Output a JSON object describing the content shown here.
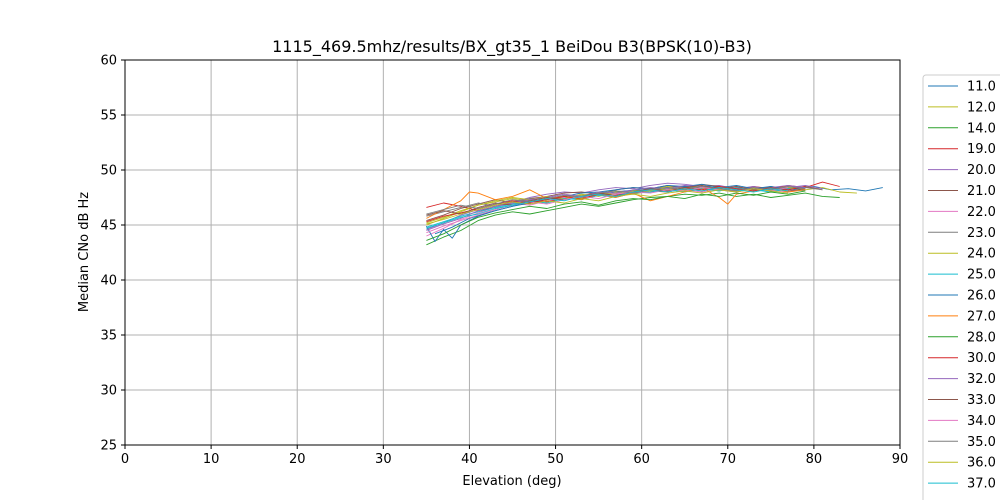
{
  "chart_data": {
    "type": "line",
    "title": "1115_469.5mhz/results/BX_gt35_1 BeiDou B3(BPSK(10)-B3)",
    "xlabel": "Elevation (deg)",
    "ylabel": "Median CNo dB Hz",
    "xlim": [
      0,
      90
    ],
    "ylim": [
      25,
      60
    ],
    "xticks": [
      "0",
      "10",
      "20",
      "30",
      "40",
      "50",
      "60",
      "70",
      "80",
      "90"
    ],
    "yticks": [
      "25",
      "30",
      "35",
      "40",
      "45",
      "50",
      "55",
      "60"
    ],
    "grid": true,
    "legend_position": "right",
    "series": [
      {
        "name": "11.0",
        "color": "#1f77b4",
        "x": [
          36,
          38,
          40,
          42,
          44,
          46,
          48,
          50,
          52,
          54,
          56,
          58,
          60,
          62,
          64,
          66,
          68,
          70,
          72,
          74,
          76,
          78,
          80,
          82,
          84,
          86,
          88
        ],
        "y": [
          44.2,
          44.8,
          45.6,
          46.1,
          46.5,
          46.9,
          47.2,
          47.4,
          47.6,
          47.8,
          47.9,
          48.1,
          48.2,
          48.4,
          48.5,
          48.4,
          48.3,
          48.1,
          48.3,
          48.2,
          48.4,
          48.3,
          48.5,
          48.2,
          48.3,
          48.1,
          48.4
        ]
      },
      {
        "name": "12.0",
        "color": "#bcbd22",
        "x": [
          35,
          37,
          39,
          41,
          43,
          45,
          47,
          49,
          51,
          53,
          55,
          57,
          59,
          61,
          63,
          65,
          67,
          69,
          71,
          73,
          75,
          77,
          79,
          81,
          83,
          85
        ],
        "y": [
          45.0,
          45.6,
          46.2,
          46.8,
          47.1,
          47.4,
          47.2,
          47.0,
          47.5,
          47.7,
          47.9,
          47.8,
          48.1,
          48.2,
          48.5,
          48.3,
          48.6,
          48.2,
          48.4,
          48.1,
          48.3,
          48.5,
          48.2,
          48.4,
          48.0,
          47.9
        ]
      },
      {
        "name": "14.0",
        "color": "#2ca02c",
        "x": [
          35,
          37,
          39,
          41,
          43,
          45,
          47,
          49,
          51,
          53,
          55,
          57,
          59,
          61,
          63,
          65,
          67,
          69,
          71,
          73,
          75,
          77,
          79,
          81,
          83
        ],
        "y": [
          43.2,
          43.9,
          44.5,
          45.4,
          45.9,
          46.2,
          46.0,
          46.3,
          46.6,
          46.9,
          46.7,
          47.0,
          47.3,
          47.5,
          47.6,
          47.8,
          47.7,
          47.9,
          47.6,
          47.8,
          47.5,
          47.7,
          47.9,
          47.6,
          47.5
        ]
      },
      {
        "name": "19.0",
        "color": "#d62728",
        "x": [
          35,
          37,
          39,
          41,
          43,
          45,
          47,
          49,
          51,
          53,
          55,
          57,
          59,
          61,
          63,
          65,
          67,
          69,
          71,
          73,
          75,
          77,
          79,
          81,
          83
        ],
        "y": [
          46.6,
          47.0,
          46.7,
          46.3,
          46.6,
          47.0,
          47.3,
          47.1,
          47.5,
          47.4,
          47.8,
          47.6,
          47.9,
          48.1,
          48.0,
          48.3,
          48.1,
          48.4,
          48.2,
          48.5,
          48.3,
          48.6,
          48.4,
          48.9,
          48.5
        ]
      },
      {
        "name": "20.0",
        "color": "#9467bd",
        "x": [
          35,
          37,
          39,
          41,
          43,
          45,
          47,
          49,
          51,
          53,
          55,
          57,
          59,
          61,
          63,
          65,
          67,
          69,
          71,
          73,
          75,
          77,
          79,
          81
        ],
        "y": [
          44.6,
          45.2,
          45.9,
          46.4,
          46.8,
          47.1,
          47.5,
          47.8,
          48.0,
          47.9,
          48.2,
          48.4,
          48.3,
          48.6,
          48.8,
          48.7,
          48.5,
          48.6,
          48.3,
          48.5,
          48.2,
          48.4,
          48.6,
          48.3
        ]
      },
      {
        "name": "21.0",
        "color": "#8c564b",
        "x": [
          35,
          37,
          39,
          41,
          43,
          45,
          47,
          49,
          51,
          53,
          55,
          57,
          59,
          61,
          63,
          65,
          67,
          69,
          71,
          73,
          75,
          77,
          79,
          81
        ],
        "y": [
          45.4,
          45.9,
          46.5,
          46.9,
          47.3,
          47.0,
          47.4,
          47.6,
          47.9,
          48.0,
          47.8,
          48.2,
          48.4,
          48.3,
          48.6,
          48.4,
          48.7,
          48.5,
          48.2,
          48.4,
          48.1,
          48.3,
          48.5,
          48.2
        ]
      },
      {
        "name": "22.0",
        "color": "#e377c2",
        "x": [
          35,
          37,
          39,
          41,
          43,
          45,
          47,
          49,
          51,
          53,
          55,
          57,
          59,
          61,
          63,
          65,
          67,
          69,
          71,
          73,
          75,
          77,
          79
        ],
        "y": [
          44.0,
          44.7,
          45.5,
          46.1,
          46.6,
          47.0,
          46.8,
          47.2,
          47.5,
          47.3,
          47.7,
          47.9,
          47.8,
          48.1,
          48.3,
          48.2,
          48.0,
          48.3,
          48.1,
          48.4,
          48.2,
          48.0,
          48.3
        ]
      },
      {
        "name": "23.0",
        "color": "#7f7f7f",
        "x": [
          35,
          37,
          39,
          41,
          43,
          45,
          47,
          49,
          51,
          53,
          55,
          57,
          59,
          61,
          63,
          65,
          67,
          69,
          71,
          73,
          75,
          77,
          79,
          81
        ],
        "y": [
          45.8,
          46.2,
          46.6,
          47.0,
          46.7,
          47.1,
          47.4,
          47.3,
          47.7,
          47.6,
          47.9,
          48.1,
          48.0,
          48.3,
          48.2,
          48.5,
          48.3,
          48.1,
          48.4,
          48.2,
          48.5,
          48.3,
          48.4,
          48.2
        ]
      },
      {
        "name": "24.0",
        "color": "#bcbd22",
        "x": [
          35,
          37,
          39,
          41,
          43,
          45,
          47,
          49,
          51,
          53,
          55,
          57,
          59,
          61,
          63,
          65,
          67,
          69,
          71,
          73,
          75,
          77,
          79
        ],
        "y": [
          45.2,
          45.7,
          46.3,
          46.8,
          47.2,
          47.5,
          47.3,
          47.6,
          47.4,
          47.8,
          47.6,
          48.0,
          47.8,
          48.1,
          48.3,
          48.1,
          48.4,
          48.2,
          48.0,
          48.3,
          48.1,
          48.4,
          48.2
        ]
      },
      {
        "name": "25.0",
        "color": "#17becf",
        "x": [
          35,
          37,
          39,
          41,
          43,
          45,
          47,
          49,
          51,
          53,
          55,
          57,
          59,
          61,
          63,
          65,
          67,
          69,
          71,
          73,
          75,
          77,
          79
        ],
        "y": [
          44.8,
          45.3,
          45.8,
          46.2,
          46.6,
          46.9,
          47.2,
          47.0,
          47.4,
          47.3,
          47.7,
          47.5,
          47.9,
          48.0,
          48.2,
          48.0,
          48.3,
          48.1,
          48.4,
          48.2,
          48.0,
          48.3,
          48.1
        ]
      },
      {
        "name": "26.0",
        "color": "#1f77b4",
        "x": [
          35,
          36,
          37,
          38,
          39,
          41,
          43,
          45,
          47,
          49,
          51,
          53,
          55,
          57,
          59,
          61,
          63,
          65,
          67,
          69,
          71,
          73,
          75,
          77,
          79
        ],
        "y": [
          44.9,
          43.5,
          44.6,
          43.8,
          45.0,
          45.8,
          46.3,
          46.7,
          47.0,
          47.4,
          47.6,
          47.9,
          48.0,
          48.2,
          48.4,
          48.3,
          48.6,
          48.5,
          48.7,
          48.4,
          48.6,
          48.3,
          48.5,
          48.2,
          48.4
        ]
      },
      {
        "name": "27.0",
        "color": "#ff7f0e",
        "x": [
          35,
          37,
          39,
          40,
          41,
          43,
          45,
          47,
          49,
          51,
          53,
          55,
          57,
          59,
          61,
          63,
          65,
          67,
          69,
          70,
          71,
          73,
          75,
          77,
          79
        ],
        "y": [
          45.6,
          46.4,
          47.2,
          48.0,
          47.9,
          47.3,
          47.6,
          48.2,
          47.4,
          47.6,
          47.3,
          47.8,
          47.5,
          47.9,
          47.2,
          47.6,
          48.0,
          48.4,
          47.5,
          46.9,
          47.8,
          48.1,
          48.4,
          48.0,
          48.2
        ]
      },
      {
        "name": "28.0",
        "color": "#2ca02c",
        "x": [
          35,
          37,
          39,
          41,
          43,
          45,
          47,
          49,
          51,
          53,
          55,
          57,
          59,
          61,
          63,
          65,
          67,
          69,
          71,
          73,
          75,
          77,
          79
        ],
        "y": [
          43.6,
          44.2,
          45.0,
          45.7,
          46.1,
          46.4,
          46.7,
          46.5,
          46.9,
          47.1,
          46.8,
          47.2,
          47.4,
          47.3,
          47.6,
          47.4,
          47.8,
          47.6,
          47.9,
          47.7,
          48.0,
          47.8,
          48.1
        ]
      },
      {
        "name": "30.0",
        "color": "#d62728",
        "x": [
          35,
          37,
          39,
          41,
          43,
          45,
          47,
          49,
          51,
          53,
          55,
          57,
          59,
          61,
          63,
          65,
          67,
          69,
          71,
          73,
          75,
          77,
          79
        ],
        "y": [
          45.3,
          45.8,
          46.1,
          46.5,
          46.9,
          47.2,
          47.0,
          47.3,
          47.6,
          47.4,
          47.8,
          47.7,
          48.0,
          48.2,
          48.1,
          48.4,
          48.2,
          48.5,
          48.3,
          48.1,
          48.4,
          48.2,
          48.5
        ]
      },
      {
        "name": "32.0",
        "color": "#9467bd",
        "x": [
          35,
          37,
          39,
          41,
          43,
          45,
          47,
          49,
          51,
          53,
          55,
          57,
          59,
          61,
          63,
          65,
          67,
          69,
          71,
          73,
          75,
          77,
          79
        ],
        "y": [
          44.5,
          45.1,
          45.6,
          46.3,
          46.7,
          47.0,
          47.3,
          47.5,
          47.8,
          47.6,
          48.0,
          47.9,
          48.2,
          48.4,
          48.3,
          48.6,
          48.5,
          48.3,
          48.5,
          48.2,
          48.4,
          48.6,
          48.4
        ]
      },
      {
        "name": "33.0",
        "color": "#8c564b",
        "x": [
          35,
          37,
          39,
          41,
          43,
          45,
          47,
          49,
          51,
          53,
          55,
          57,
          59,
          61,
          63,
          65,
          67,
          69,
          71,
          73,
          75,
          77,
          79
        ],
        "y": [
          45.9,
          46.3,
          46.0,
          46.6,
          47.0,
          46.8,
          47.2,
          47.5,
          47.3,
          47.6,
          47.9,
          47.7,
          48.0,
          48.3,
          48.1,
          48.4,
          48.6,
          48.3,
          48.5,
          48.2,
          48.4,
          48.1,
          48.3
        ]
      },
      {
        "name": "34.0",
        "color": "#e377c2",
        "x": [
          35,
          37,
          39,
          41,
          43,
          45,
          47,
          49,
          51,
          53,
          55,
          57,
          59,
          61,
          63,
          65,
          67,
          69,
          71,
          73,
          75,
          77
        ],
        "y": [
          44.3,
          44.9,
          45.4,
          45.9,
          46.4,
          46.8,
          47.1,
          46.9,
          47.3,
          47.6,
          47.4,
          47.8,
          48.0,
          47.9,
          48.2,
          48.1,
          48.4,
          48.2,
          48.0,
          48.3,
          48.1,
          48.4
        ]
      },
      {
        "name": "35.0",
        "color": "#7f7f7f",
        "x": [
          35,
          37,
          39,
          41,
          43,
          45,
          47,
          49,
          51,
          53,
          55,
          57,
          59,
          61,
          63,
          65,
          67,
          69,
          71,
          73,
          75,
          77,
          79
        ],
        "y": [
          46.0,
          46.4,
          46.8,
          46.5,
          46.9,
          47.3,
          47.1,
          47.4,
          47.7,
          47.5,
          47.9,
          48.1,
          47.9,
          48.2,
          48.4,
          48.2,
          48.5,
          48.3,
          48.1,
          48.4,
          48.2,
          48.5,
          48.3
        ]
      },
      {
        "name": "36.0",
        "color": "#bcbd22",
        "x": [
          35,
          37,
          39,
          41,
          43,
          45,
          47,
          49,
          51,
          53,
          55,
          57,
          59,
          61,
          63,
          65,
          67,
          69,
          71,
          73,
          75,
          77
        ],
        "y": [
          45.1,
          45.5,
          46.0,
          46.4,
          46.8,
          47.1,
          46.9,
          47.2,
          47.0,
          47.4,
          47.2,
          47.6,
          47.8,
          47.6,
          47.9,
          48.1,
          47.9,
          48.2,
          48.0,
          48.3,
          48.1,
          47.9
        ]
      },
      {
        "name": "37.0",
        "color": "#17becf",
        "x": [
          35,
          37,
          39,
          41,
          43,
          45,
          47,
          49,
          51,
          53,
          55,
          57,
          59,
          61,
          63,
          65,
          67,
          69,
          71,
          73,
          75,
          77
        ],
        "y": [
          44.7,
          45.2,
          45.7,
          46.0,
          46.5,
          46.8,
          47.1,
          47.4,
          47.2,
          47.6,
          47.8,
          47.6,
          48.0,
          48.2,
          48.0,
          48.3,
          48.1,
          48.4,
          48.2,
          48.0,
          48.3,
          48.1
        ]
      }
    ]
  }
}
